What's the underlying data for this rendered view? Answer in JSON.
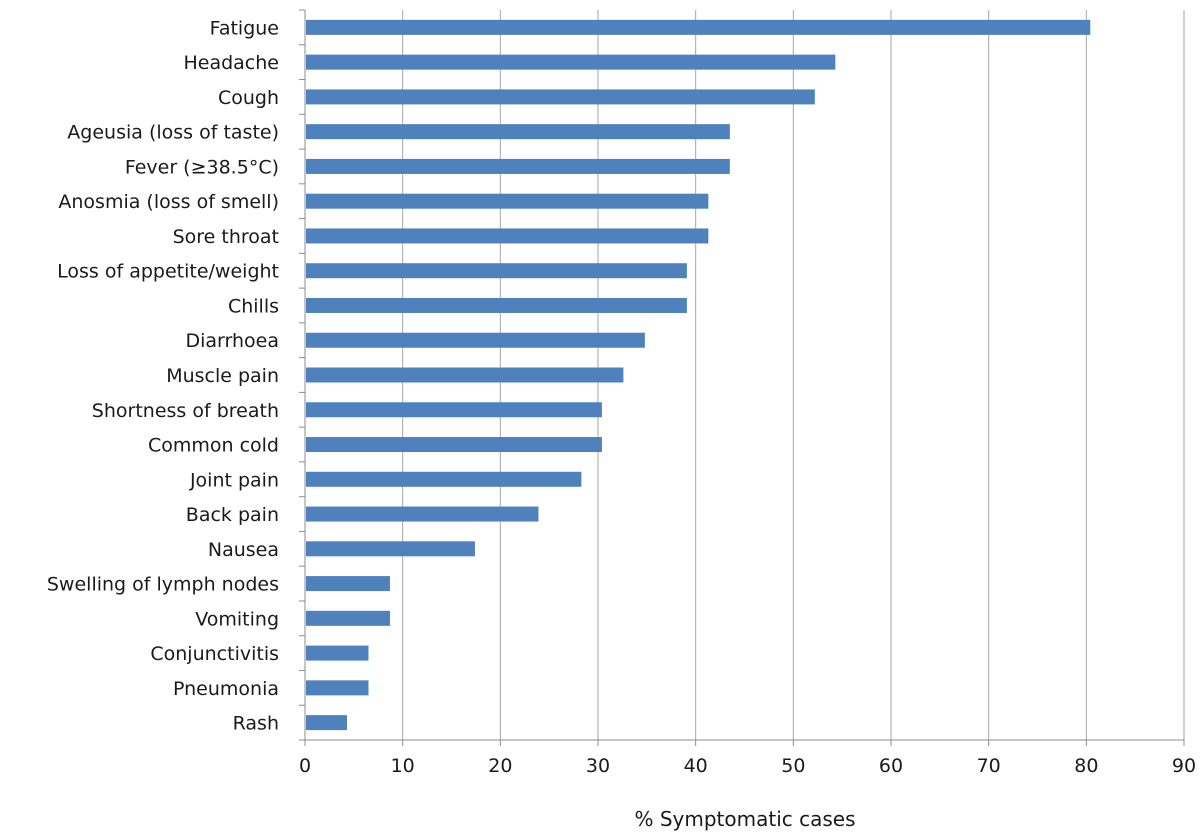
{
  "chart_data": {
    "type": "bar",
    "orientation": "horizontal",
    "categories": [
      "Fatigue",
      "Headache",
      "Cough",
      "Ageusia (loss of taste)",
      "Fever (≥38.5°C)",
      "Anosmia (loss of smell)",
      "Sore throat",
      "Loss of appetite/weight",
      "Chills",
      "Diarrhoea",
      "Muscle pain",
      "Shortness of breath",
      "Common cold",
      "Joint pain",
      "Back pain",
      "Nausea",
      "Swelling of lymph nodes",
      "Vomiting",
      "Conjunctivitis",
      "Pneumonia",
      "Rash"
    ],
    "values": [
      80.4,
      54.3,
      52.2,
      43.5,
      43.5,
      41.3,
      41.3,
      39.1,
      39.1,
      34.8,
      32.6,
      30.4,
      30.4,
      28.3,
      23.9,
      17.4,
      8.7,
      8.7,
      6.5,
      6.5,
      4.3
    ],
    "xlabel": "% Symptomatic cases",
    "ylabel": "",
    "xlim": [
      0,
      90
    ],
    "xticks": [
      "0",
      "10",
      "20",
      "30",
      "40",
      "50",
      "60",
      "70",
      "80",
      "90"
    ],
    "grid": "vertical",
    "legend": "none",
    "bar_color": "#4f81bd",
    "grid_color": "#a6a6a6",
    "axis_color": "#8c8c8c"
  }
}
